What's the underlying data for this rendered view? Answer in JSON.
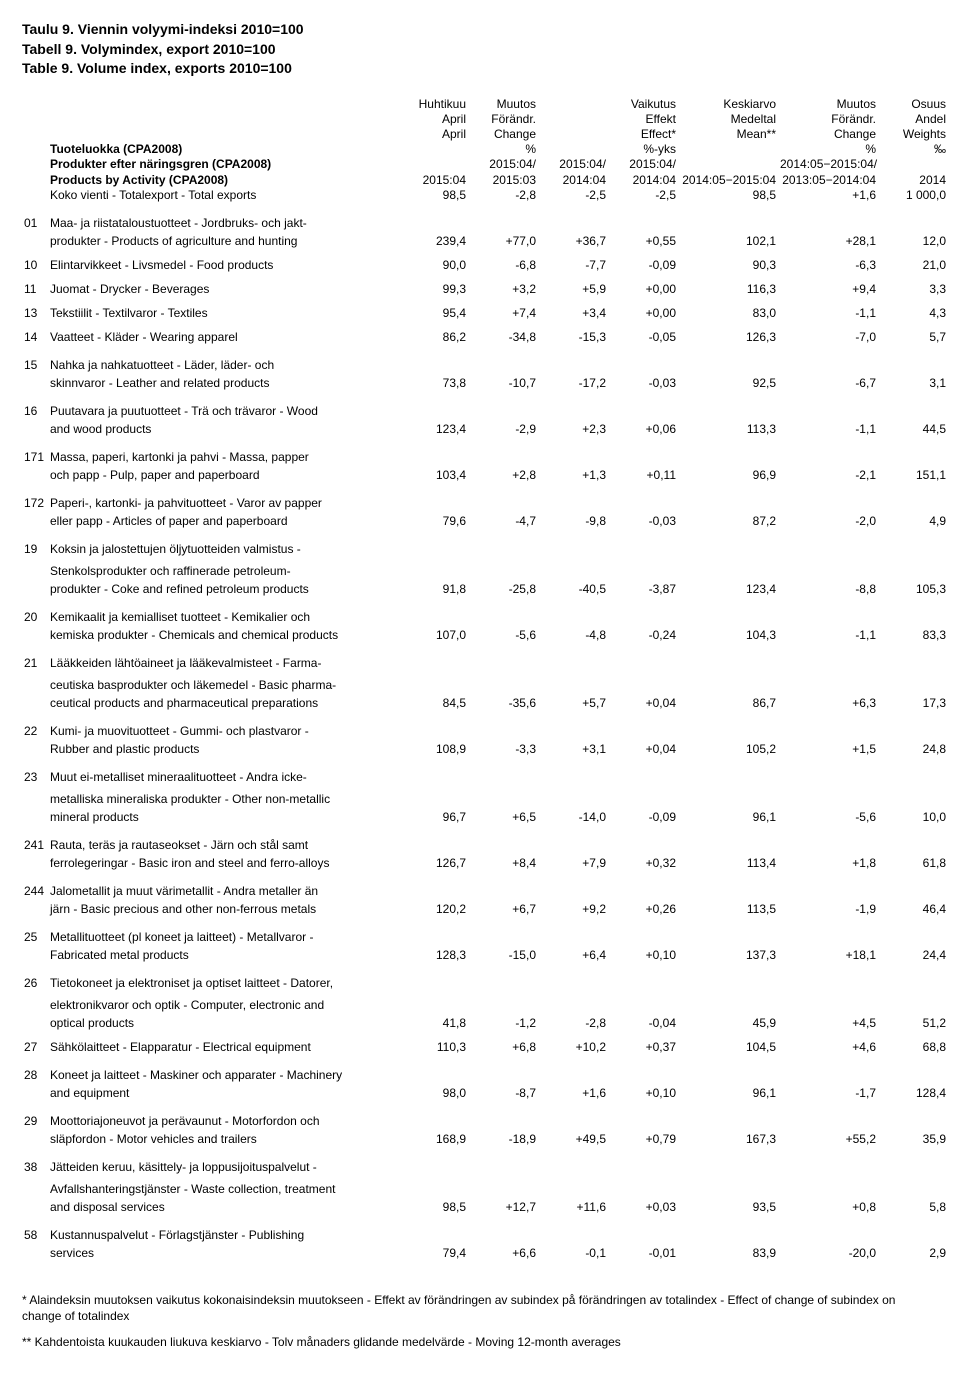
{
  "title": {
    "fi": "Taulu 9. Viennin volyymi-indeksi 2010=100",
    "sv": "Tabell 9. Volymindex, export 2010=100",
    "en": "Table 9. Volume index, exports 2010=100"
  },
  "header": {
    "col_april": [
      "Huhtikuu",
      "April",
      "April"
    ],
    "col_change1": [
      "Muutos",
      "Förändr.",
      "Change",
      "%"
    ],
    "col_effect": [
      "Vaikutus",
      "Effekt",
      "Effect*",
      "%-yks"
    ],
    "col_mean": [
      "Keskiarvo",
      "Medeltal",
      "Mean**"
    ],
    "col_change2": [
      "Muutos",
      "Förändr.",
      "Change",
      "%"
    ],
    "col_weights": [
      "Osuus",
      "Andel",
      "Weights",
      "‰"
    ],
    "class_fi": "Tuoteluokka (CPA2008)",
    "class_sv": "Produkter efter näringsgren (CPA2008)",
    "class_en": "Products by Activity (CPA2008)",
    "periods": {
      "c1": "2015:04",
      "c2a": "2015:04/",
      "c2b": "2015:03",
      "c3a": "2015:04/",
      "c3b": "2014:04",
      "c4a": "2015:04/",
      "c4b": "2014:04",
      "c5": "2014:05−2015:04",
      "c6a": "2014:05−2015:04/",
      "c6b": "2013:05−2014:04",
      "c7": "2014"
    }
  },
  "rows": [
    {
      "code": "",
      "label": [
        "Koko vienti - Totalexport - Total exports"
      ],
      "vals": [
        "98,5",
        "-2,8",
        "-2,5",
        "-2,5",
        "98,5",
        "+1,6",
        "1 000,0"
      ]
    },
    {
      "code": "01",
      "label": [
        "Maa- ja riistataloustuotteet - Jordbruks- och jakt-",
        "produkter - Products of agriculture and hunting"
      ],
      "vals": [
        "239,4",
        "+77,0",
        "+36,7",
        "+0,55",
        "102,1",
        "+28,1",
        "12,0"
      ]
    },
    {
      "code": "10",
      "label": [
        "Elintarvikkeet - Livsmedel - Food products"
      ],
      "vals": [
        "90,0",
        "-6,8",
        "-7,7",
        "-0,09",
        "90,3",
        "-6,3",
        "21,0"
      ]
    },
    {
      "code": "11",
      "label": [
        "Juomat - Drycker - Beverages"
      ],
      "vals": [
        "99,3",
        "+3,2",
        "+5,9",
        "+0,00",
        "116,3",
        "+9,4",
        "3,3"
      ]
    },
    {
      "code": "13",
      "label": [
        "Tekstiilit  - Textilvaror - Textiles"
      ],
      "vals": [
        "95,4",
        "+7,4",
        "+3,4",
        "+0,00",
        "83,0",
        "-1,1",
        "4,3"
      ]
    },
    {
      "code": "14",
      "label": [
        "Vaatteet - Kläder - Wearing apparel"
      ],
      "vals": [
        "86,2",
        "-34,8",
        "-15,3",
        "-0,05",
        "126,3",
        "-7,0",
        "5,7"
      ]
    },
    {
      "code": "15",
      "label": [
        "Nahka ja nahkatuotteet - Läder, läder- och",
        "skinnvaror - Leather and related products"
      ],
      "vals": [
        "73,8",
        "-10,7",
        "-17,2",
        "-0,03",
        "92,5",
        "-6,7",
        "3,1"
      ]
    },
    {
      "code": "16",
      "label": [
        "Puutavara ja puutuotteet - Trä och trävaror - Wood",
        "and wood products"
      ],
      "vals": [
        "123,4",
        "-2,9",
        "+2,3",
        "+0,06",
        "113,3",
        "-1,1",
        "44,5"
      ]
    },
    {
      "code": "171",
      "label": [
        "Massa, paperi, kartonki ja pahvi - Massa, papper",
        "och papp -  Pulp, paper and paperboard"
      ],
      "vals": [
        "103,4",
        "+2,8",
        "+1,3",
        "+0,11",
        "96,9",
        "-2,1",
        "151,1"
      ]
    },
    {
      "code": "172",
      "label": [
        "Paperi-, kartonki- ja pahvituotteet - Varor av papper",
        "eller papp - Articles of paper and paperboard"
      ],
      "vals": [
        "79,6",
        "-4,7",
        "-9,8",
        "-0,03",
        "87,2",
        "-2,0",
        "4,9"
      ]
    },
    {
      "code": "19",
      "label": [
        "Koksin ja jalostettujen öljytuotteiden valmistus -",
        "Stenkolsprodukter och raffinerade petroleum-",
        "produkter - Coke and refined petroleum products"
      ],
      "vals": [
        "91,8",
        "-25,8",
        "-40,5",
        "-3,87",
        "123,4",
        "-8,8",
        "105,3"
      ]
    },
    {
      "code": "20",
      "label": [
        "Kemikaalit ja kemialliset tuotteet - Kemikalier och",
        "kemiska produkter - Chemicals and chemical products"
      ],
      "vals": [
        "107,0",
        "-5,6",
        "-4,8",
        "-0,24",
        "104,3",
        "-1,1",
        "83,3"
      ]
    },
    {
      "code": "21",
      "label": [
        "Lääkkeiden lähtöaineet ja lääkevalmisteet - Farma-",
        "ceutiska basprodukter och läkemedel - Basic pharma-",
        "ceutical products and pharmaceutical preparations"
      ],
      "vals": [
        "84,5",
        "-35,6",
        "+5,7",
        "+0,04",
        "86,7",
        "+6,3",
        "17,3"
      ]
    },
    {
      "code": "22",
      "label": [
        "Kumi- ja muovituotteet - Gummi- och plastvaror -",
        "Rubber and plastic products"
      ],
      "vals": [
        "108,9",
        "-3,3",
        "+3,1",
        "+0,04",
        "105,2",
        "+1,5",
        "24,8"
      ]
    },
    {
      "code": "23",
      "label": [
        "Muut ei-metalliset mineraalituotteet - Andra icke-",
        "metalliska mineraliska produkter - Other non-metallic",
        "mineral products"
      ],
      "vals": [
        "96,7",
        "+6,5",
        "-14,0",
        "-0,09",
        "96,1",
        "-5,6",
        "10,0"
      ]
    },
    {
      "code": "241",
      "label": [
        "Rauta, teräs ja rautaseokset - Järn och stål samt",
        "ferrolegeringar - Basic iron and steel and ferro-alloys"
      ],
      "vals": [
        "126,7",
        "+8,4",
        "+7,9",
        "+0,32",
        "113,4",
        "+1,8",
        "61,8"
      ]
    },
    {
      "code": "244",
      "label": [
        "Jalometallit ja muut värimetallit - Andra metaller än",
        "järn - Basic precious and other non-ferrous metals"
      ],
      "vals": [
        "120,2",
        "+6,7",
        "+9,2",
        "+0,26",
        "113,5",
        "-1,9",
        "46,4"
      ]
    },
    {
      "code": "25",
      "label": [
        "Metallituotteet (pl koneet ja laitteet) - Metallvaror -",
        "Fabricated metal products"
      ],
      "vals": [
        "128,3",
        "-15,0",
        "+6,4",
        "+0,10",
        "137,3",
        "+18,1",
        "24,4"
      ]
    },
    {
      "code": "26",
      "label": [
        "Tietokoneet ja elektroniset ja optiset laitteet - Datorer,",
        "elektronikvaror och optik - Computer, electronic and",
        "optical products"
      ],
      "vals": [
        "41,8",
        "-1,2",
        "-2,8",
        "-0,04",
        "45,9",
        "+4,5",
        "51,2"
      ]
    },
    {
      "code": "27",
      "label": [
        "Sähkölaitteet - Elapparatur - Electrical equipment"
      ],
      "vals": [
        "110,3",
        "+6,8",
        "+10,2",
        "+0,37",
        "104,5",
        "+4,6",
        "68,8"
      ]
    },
    {
      "code": "28",
      "label": [
        "Koneet ja laitteet - Maskiner och apparater - Machinery",
        " and equipment"
      ],
      "vals": [
        "98,0",
        "-8,7",
        "+1,6",
        "+0,10",
        "96,1",
        "-1,7",
        "128,4"
      ]
    },
    {
      "code": "29",
      "label": [
        "Moottoriajoneuvot ja perävaunut - Motorfordon och",
        "släpfordon - Motor vehicles and trailers"
      ],
      "vals": [
        "168,9",
        "-18,9",
        "+49,5",
        "+0,79",
        "167,3",
        "+55,2",
        "35,9"
      ]
    },
    {
      "code": "38",
      "label": [
        "Jätteiden keruu, käsittely- ja loppusijoituspalvelut -",
        "Avfallshanteringstjänster - Waste collection, treatment",
        "and disposal services"
      ],
      "vals": [
        "98,5",
        "+12,7",
        "+11,6",
        "+0,03",
        "93,5",
        "+0,8",
        "5,8"
      ]
    },
    {
      "code": "58",
      "label": [
        "Kustannuspalvelut - Förlagstjänster - Publishing",
        "services"
      ],
      "vals": [
        "79,4",
        "+6,6",
        "-0,1",
        "-0,01",
        "83,9",
        "-20,0",
        "2,9"
      ]
    }
  ],
  "footnotes": {
    "f1": "* Alaindeksin muutoksen vaikutus kokonaisindeksin muutokseen - Effekt av förändringen av subindex på förändringen av totalindex - Effect of change of subindex on change of totalindex",
    "f2": "** Kahdentoista kuukauden liukuva keskiarvo - Tolv månaders glidande medelvärde - Moving 12-month averages"
  }
}
